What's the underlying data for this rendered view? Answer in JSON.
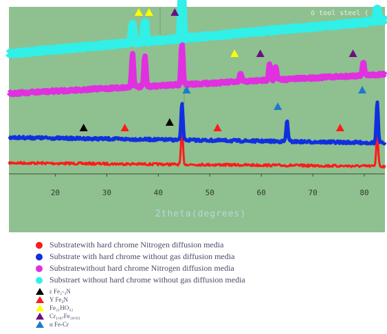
{
  "chart_data": {
    "type": "line",
    "xlabel": "2theta(degrees)",
    "corner_text": "ö tool steel (",
    "xlim": [
      11,
      84
    ],
    "x_ticks": [
      20,
      30,
      40,
      50,
      60,
      70,
      80
    ],
    "grid": false,
    "legend_placement": "bottom",
    "background_color": "#8fc08f",
    "series": [
      {
        "name": "Substratewith hard chrome Nitrogen diffusion media",
        "color": "#ff1a1a",
        "baseline": 4,
        "peaks": [
          [
            44.6,
            53
          ],
          [
            82.5,
            50
          ]
        ]
      },
      {
        "name": "Substrate with hard chrome without gas  diffusion media",
        "color": "#1030e0",
        "baseline": 0,
        "peaks": [
          [
            44.6,
            45
          ],
          [
            65.0,
            26
          ],
          [
            82.5,
            50
          ]
        ]
      },
      {
        "name": "Substratewithout hard chrome Nitrogen diffusion media",
        "color": "#e030e0",
        "baseline": 20,
        "peaks": [
          [
            35.0,
            48
          ],
          [
            37.4,
            44
          ],
          [
            44.6,
            60
          ],
          [
            56.0,
            12
          ],
          [
            61.6,
            25
          ],
          [
            62.8,
            18
          ],
          [
            79.8,
            20
          ]
        ]
      },
      {
        "name": "Substraet without hard chrome without gas diffusion media",
        "color": "#30f0e8",
        "baseline": 39,
        "peaks": [
          [
            35.0,
            28
          ],
          [
            37.4,
            30
          ],
          [
            44.6,
            64
          ],
          [
            82.5,
            20
          ]
        ]
      }
    ],
    "marker_legend": [
      {
        "label": "ε Fe₂-₃N",
        "color": "#000000"
      },
      {
        "label": "Υ Fe₄N",
        "color": "#ff1a1a"
      },
      {
        "label": "Fe₂₁HO₃₂",
        "color": "#ffff00"
      },
      {
        "label": "Cr₁,₀₇Fe₁₈,₉₃",
        "color": "#6a1080"
      },
      {
        "label": "α Fe-Cr",
        "color": "#1a7ad0"
      }
    ],
    "markers": [
      {
        "type": "yellow",
        "x": 36.2,
        "level": "cyan"
      },
      {
        "type": "yellow",
        "x": 38.2,
        "level": "cyan"
      },
      {
        "type": "purple",
        "x": 43.2,
        "level": "cyan"
      },
      {
        "type": "yellow",
        "x": 54.8,
        "level": "magenta"
      },
      {
        "type": "purple",
        "x": 59.8,
        "level": "magenta"
      },
      {
        "type": "purple",
        "x": 77.8,
        "level": "magenta"
      },
      {
        "type": "blue",
        "x": 45.5,
        "level": "blue-high"
      },
      {
        "type": "blue",
        "x": 63.2,
        "level": "blue-mid"
      },
      {
        "type": "blue",
        "x": 79.6,
        "level": "blue-high"
      },
      {
        "type": "black",
        "x": 25.5,
        "level": "blue"
      },
      {
        "type": "red",
        "x": 33.5,
        "level": "blue"
      },
      {
        "type": "black",
        "x": 42.2,
        "level": "blue-low"
      },
      {
        "type": "red",
        "x": 51.5,
        "level": "blue"
      },
      {
        "type": "red",
        "x": 75.3,
        "level": "blue"
      }
    ]
  }
}
